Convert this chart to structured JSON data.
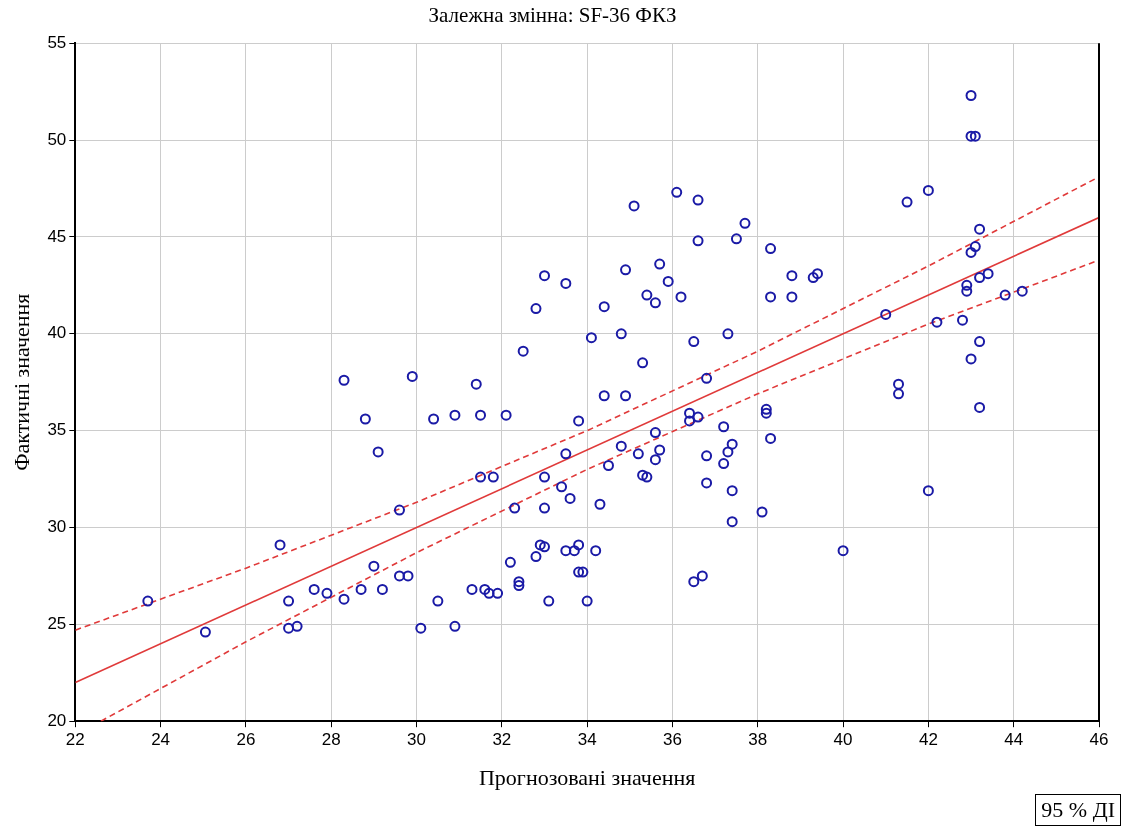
{
  "chart_data": {
    "type": "scatter",
    "title": "Залежна змінна: SF-36 ФКЗ",
    "xlabel": "Прогнозовані значення",
    "ylabel": "Фактичні значення",
    "xlim": [
      22,
      46
    ],
    "xticks": [
      22,
      24,
      26,
      28,
      30,
      32,
      34,
      36,
      38,
      40,
      42,
      44,
      46
    ],
    "ylim": [
      20,
      55
    ],
    "yticks": [
      20,
      25,
      30,
      35,
      40,
      45,
      50,
      55
    ],
    "grid": true,
    "legend": false,
    "annotations": [
      "95 % ДІ"
    ],
    "series": [
      {
        "color": "#1a1aa6",
        "marker": "circle",
        "x": [
          23.7,
          25.05,
          26.8,
          27.0,
          27.0,
          27.2,
          27.6,
          27.9,
          28.3,
          28.3,
          28.7,
          28.8,
          29.0,
          29.1,
          29.2,
          29.6,
          29.6,
          29.8,
          29.9,
          30.1,
          30.5,
          30.4,
          30.9,
          30.9,
          31.3,
          31.4,
          31.5,
          31.5,
          31.6,
          31.7,
          31.8,
          31.9,
          32.1,
          32.2,
          32.3,
          32.4,
          32.4,
          32.5,
          32.8,
          32.8,
          32.9,
          33.0,
          33.0,
          33.0,
          33.0,
          33.1,
          33.4,
          33.5,
          33.5,
          33.5,
          33.6,
          33.7,
          33.8,
          33.8,
          33.9,
          33.8,
          34.0,
          34.1,
          34.2,
          34.3,
          34.4,
          34.4,
          34.5,
          34.8,
          34.8,
          34.9,
          34.9,
          35.1,
          35.2,
          35.3,
          35.4,
          35.3,
          35.4,
          35.6,
          35.6,
          35.6,
          35.7,
          35.7,
          35.9,
          36.1,
          36.2,
          36.4,
          36.4,
          36.5,
          36.6,
          36.6,
          36.5,
          36.6,
          36.7,
          36.8,
          36.8,
          36.8,
          37.2,
          37.2,
          37.3,
          37.3,
          37.4,
          37.4,
          37.4,
          37.5,
          37.7,
          38.1,
          38.2,
          38.2,
          38.3,
          38.3,
          38.3,
          38.8,
          38.8,
          39.3,
          39.4,
          40.0,
          41.0,
          41.3,
          41.3,
          41.5,
          42.0,
          42.0,
          42.2,
          42.8,
          43.0,
          43.0,
          43.1,
          42.9,
          43.0,
          42.9,
          43.0,
          43.1,
          43.2,
          43.2,
          43.2,
          43.2,
          43.4,
          43.8,
          44.2
        ],
        "values": [
          26.2,
          24.6,
          29.1,
          26.2,
          24.8,
          24.9,
          26.8,
          26.6,
          37.6,
          26.3,
          26.8,
          35.6,
          28.0,
          33.9,
          26.8,
          30.9,
          27.5,
          27.5,
          37.8,
          24.8,
          26.2,
          35.6,
          35.8,
          24.9,
          26.8,
          37.4,
          35.8,
          32.6,
          26.8,
          26.6,
          32.6,
          26.6,
          35.8,
          28.2,
          31.0,
          27.0,
          27.2,
          39.1,
          28.5,
          41.3,
          29.1,
          29.0,
          32.6,
          43.0,
          31.0,
          26.2,
          32.1,
          33.8,
          42.6,
          28.8,
          31.5,
          28.8,
          35.5,
          27.7,
          27.7,
          29.1,
          26.2,
          39.8,
          28.8,
          31.2,
          36.8,
          41.4,
          33.2,
          40.0,
          34.2,
          43.3,
          36.8,
          46.6,
          33.8,
          32.7,
          32.6,
          38.5,
          42.0,
          33.5,
          34.9,
          41.6,
          34.0,
          43.6,
          42.7,
          47.3,
          41.9,
          35.9,
          35.5,
          39.6,
          44.8,
          46.9,
          27.2,
          35.7,
          27.5,
          33.7,
          32.3,
          37.7,
          35.2,
          33.3,
          40.0,
          33.9,
          31.9,
          30.3,
          34.3,
          44.9,
          45.7,
          30.8,
          36.1,
          35.9,
          41.9,
          34.6,
          44.4,
          43.0,
          41.9,
          42.9,
          43.1,
          28.8,
          41.0,
          37.4,
          36.9,
          46.8,
          47.4,
          31.9,
          40.6,
          40.7,
          52.3,
          44.2,
          44.5,
          42.5,
          50.2,
          42.2,
          38.7,
          50.2,
          42.9,
          39.6,
          36.2,
          45.4,
          43.1,
          42.0,
          42.2
        ]
      },
      {
        "type": "line",
        "color": "#e03a3a",
        "line_style": "solid",
        "marker": "none",
        "x": [
          22,
          46
        ],
        "values": [
          22,
          46
        ]
      },
      {
        "type": "line",
        "color": "#e03a3a",
        "line_style": "dashed",
        "marker": "none",
        "x": [
          22,
          26,
          30,
          34,
          38,
          42,
          46
        ],
        "values": [
          24.7,
          27.9,
          31.3,
          35.0,
          39.1,
          43.5,
          48.1
        ]
      },
      {
        "type": "line",
        "color": "#e03a3a",
        "line_style": "dashed",
        "marker": "none",
        "x": [
          22.6,
          26,
          30,
          34,
          38,
          42,
          46
        ],
        "values": [
          20.0,
          24.1,
          28.7,
          33.0,
          36.9,
          40.5,
          43.8
        ]
      }
    ]
  }
}
